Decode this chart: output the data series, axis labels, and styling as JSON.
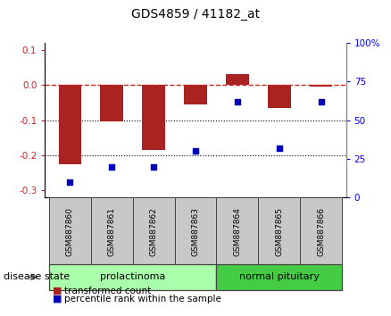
{
  "title": "GDS4859 / 41182_at",
  "samples": [
    "GSM887860",
    "GSM887861",
    "GSM887862",
    "GSM887863",
    "GSM887864",
    "GSM887865",
    "GSM887866"
  ],
  "bar_values": [
    -0.225,
    -0.103,
    -0.185,
    -0.055,
    0.03,
    -0.065,
    -0.005
  ],
  "scatter_pct": [
    10,
    20,
    20,
    30,
    62,
    32,
    62
  ],
  "ylim_left": [
    -0.32,
    0.12
  ],
  "ylim_right": [
    0,
    100
  ],
  "yticks_left": [
    -0.3,
    -0.2,
    -0.1,
    0.0,
    0.1
  ],
  "yticks_right": [
    0,
    25,
    50,
    75,
    100
  ],
  "ytick_labels_right": [
    "0",
    "25",
    "50",
    "75",
    "100%"
  ],
  "bar_color": "#AA2222",
  "scatter_color": "#0000BB",
  "hline_color": "#CC2222",
  "dotted_line_color": "#000000",
  "hline_y": 0.0,
  "dotted_lines": [
    -0.1,
    -0.2
  ],
  "groups": [
    {
      "label": "prolactinoma",
      "start": 0,
      "end": 3,
      "color": "#AAFFAA"
    },
    {
      "label": "normal pituitary",
      "start": 4,
      "end": 6,
      "color": "#44CC44"
    }
  ],
  "group_label": "disease state",
  "legend_bar_label": "transformed count",
  "legend_scatter_label": "percentile rank within the sample",
  "bar_width": 0.55,
  "sample_box_color": "#C8C8C8",
  "sample_box_edge": "#444444",
  "group_box_edge": "#444444"
}
